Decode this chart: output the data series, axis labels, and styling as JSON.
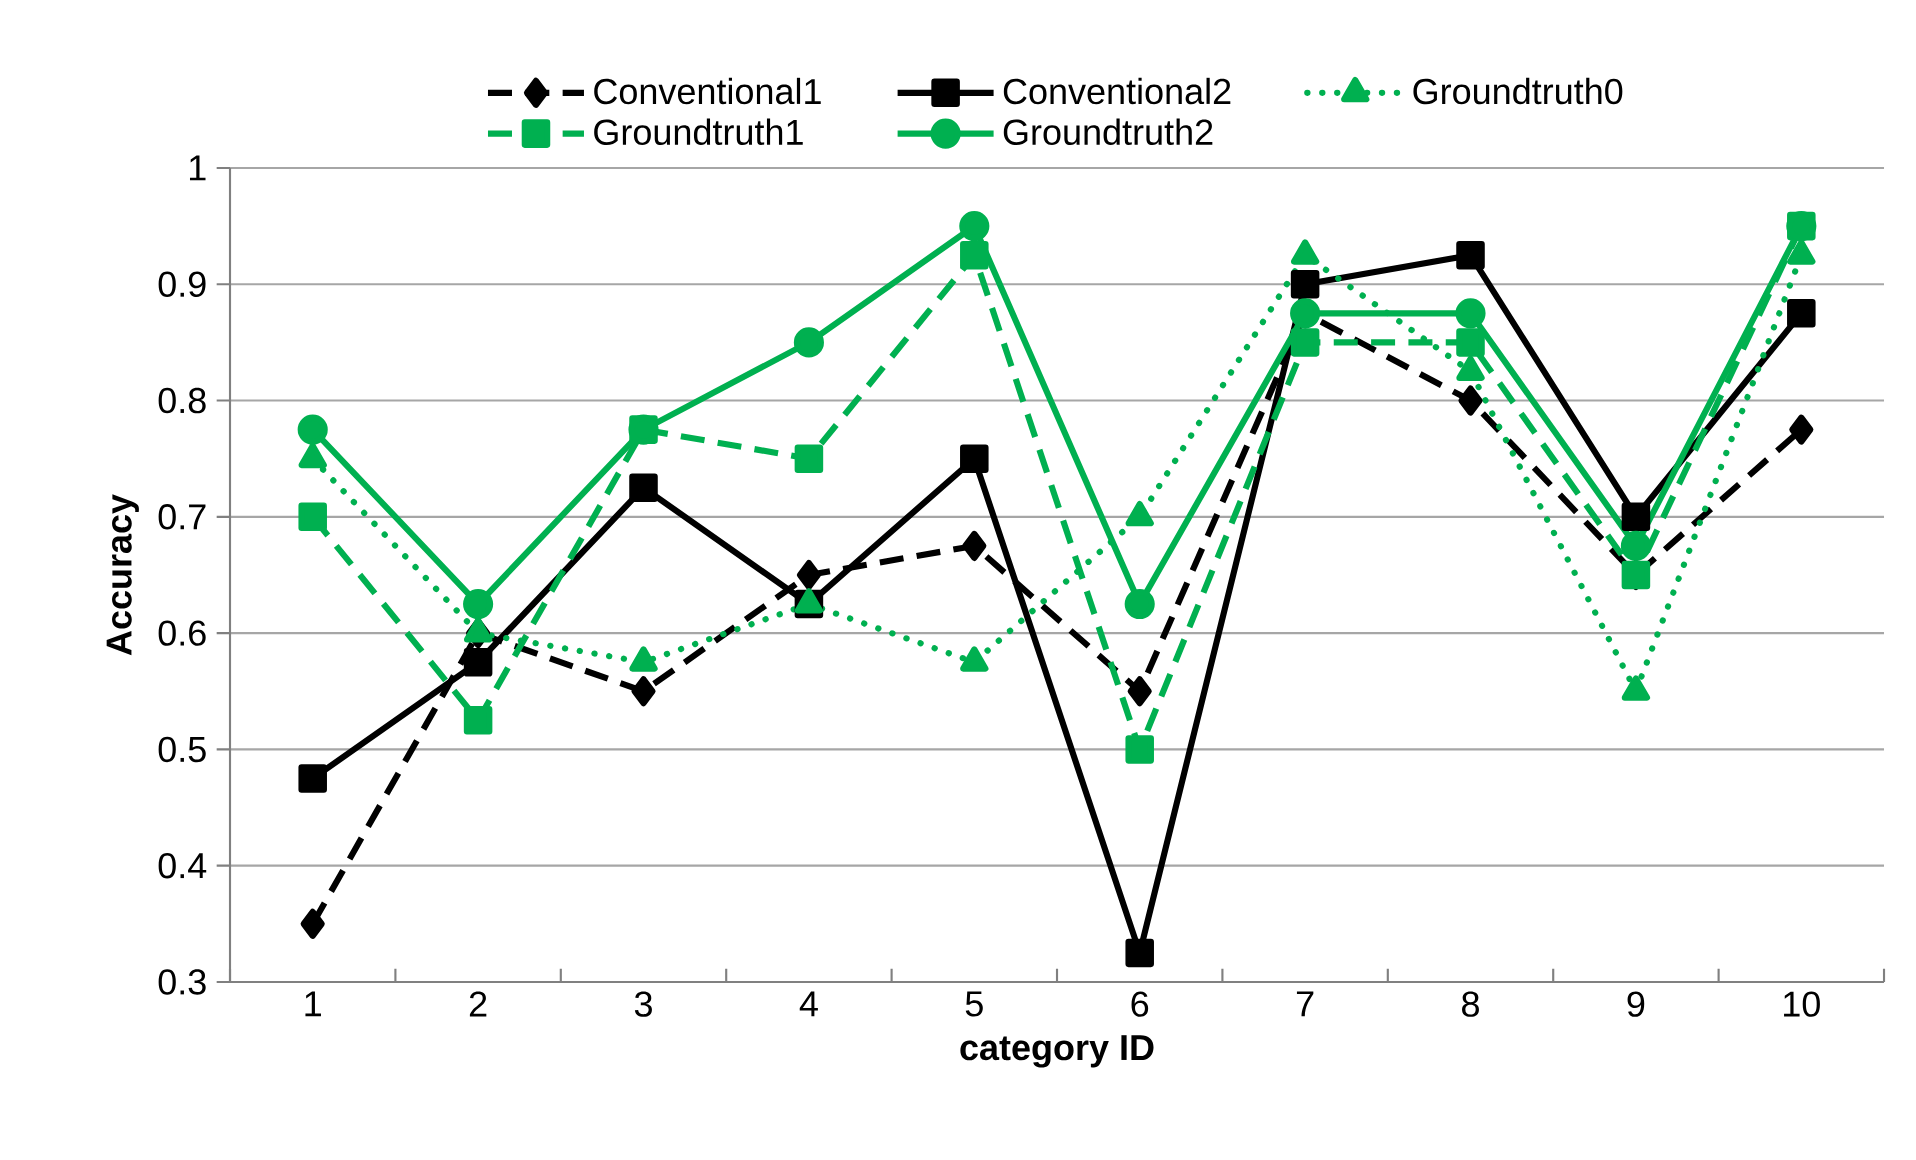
{
  "chart_data": {
    "type": "line",
    "xlabel": "category ID",
    "ylabel": "Accuracy",
    "categories": [
      "1",
      "2",
      "3",
      "4",
      "5",
      "6",
      "7",
      "8",
      "9",
      "10"
    ],
    "ylim": [
      0.3,
      1
    ],
    "yticks": [
      0.3,
      0.4,
      0.5,
      0.6,
      0.7,
      0.8,
      0.9,
      1
    ],
    "grid": "y",
    "legend": "top",
    "series": [
      {
        "name": "Conventional1",
        "color": "#000000",
        "marker": "diamond",
        "line_style": "dashed",
        "values": [
          0.35,
          0.6,
          0.55,
          0.65,
          0.675,
          0.55,
          0.875,
          0.8,
          0.65,
          0.775
        ]
      },
      {
        "name": "Conventional2",
        "color": "#000000",
        "marker": "square",
        "line_style": "solid",
        "values": [
          0.475,
          0.575,
          0.725,
          0.625,
          0.75,
          0.325,
          0.9,
          0.925,
          0.7,
          0.875
        ]
      },
      {
        "name": "Groundtruth0",
        "color": "#00b050",
        "marker": "triangle",
        "line_style": "dotted",
        "values": [
          0.75,
          0.6,
          0.575,
          0.625,
          0.575,
          0.7,
          0.925,
          0.825,
          0.55,
          0.925
        ]
      },
      {
        "name": "Groundtruth1",
        "color": "#00b050",
        "marker": "square",
        "line_style": "dashed",
        "values": [
          0.7,
          0.525,
          0.775,
          0.75,
          0.925,
          0.5,
          0.85,
          0.85,
          0.65,
          0.95
        ]
      },
      {
        "name": "Groundtruth2",
        "color": "#00b050",
        "marker": "circle",
        "line_style": "solid",
        "values": [
          0.775,
          0.625,
          0.775,
          0.85,
          0.95,
          0.625,
          0.875,
          0.875,
          0.675,
          0.95
        ]
      }
    ]
  }
}
